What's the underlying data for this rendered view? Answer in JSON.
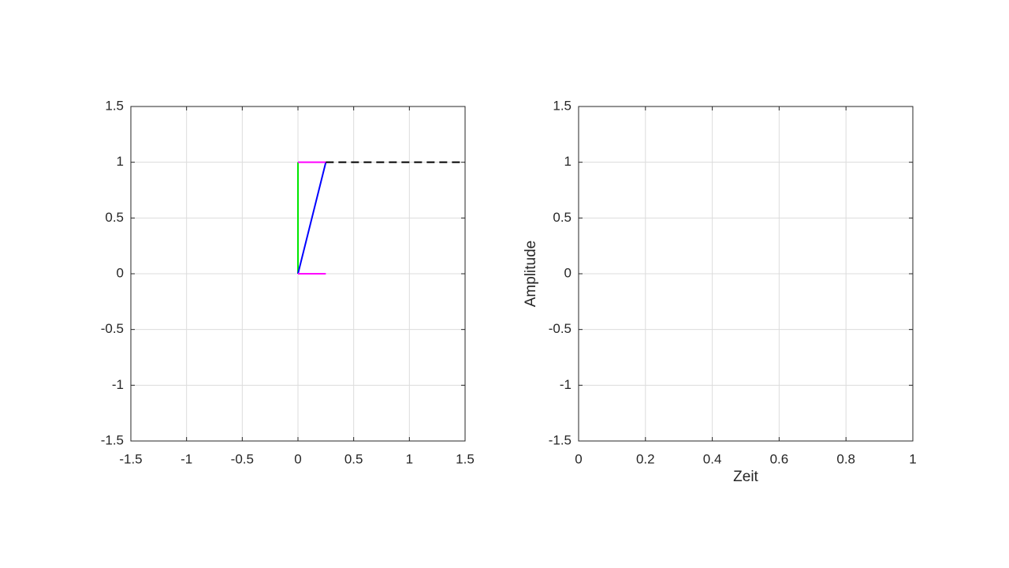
{
  "chart_data": [
    {
      "type": "line",
      "xlim": [
        -1.5,
        1.5
      ],
      "ylim": [
        -1.5,
        1.5
      ],
      "xticks": [
        -1.5,
        -1,
        -0.5,
        0,
        0.5,
        1,
        1.5
      ],
      "yticks": [
        -1.5,
        -1,
        -0.5,
        0,
        0.5,
        1,
        1.5
      ],
      "grid": true,
      "series": [
        {
          "color": "#00e600",
          "x": [
            0,
            0
          ],
          "values": [
            0,
            1
          ]
        },
        {
          "color": "#0000ff",
          "x": [
            0,
            0.25
          ],
          "values": [
            0,
            1
          ]
        },
        {
          "color": "#ff00ff",
          "x": [
            0,
            0.25,
            null,
            0,
            0.25
          ],
          "values": [
            1,
            1,
            null,
            0,
            0
          ]
        },
        {
          "color": "#000000",
          "dashed": true,
          "x": [
            0.25,
            1.5
          ],
          "values": [
            1,
            1
          ]
        }
      ]
    },
    {
      "type": "line",
      "xlabel": "Zeit",
      "ylabel": "Amplitude",
      "xlim": [
        0,
        1
      ],
      "ylim": [
        -1.5,
        1.5
      ],
      "xticks": [
        0,
        0.2,
        0.4,
        0.6,
        0.8,
        1
      ],
      "yticks": [
        -1.5,
        -1,
        -0.5,
        0,
        0.5,
        1,
        1.5
      ],
      "grid": true,
      "series": []
    }
  ]
}
